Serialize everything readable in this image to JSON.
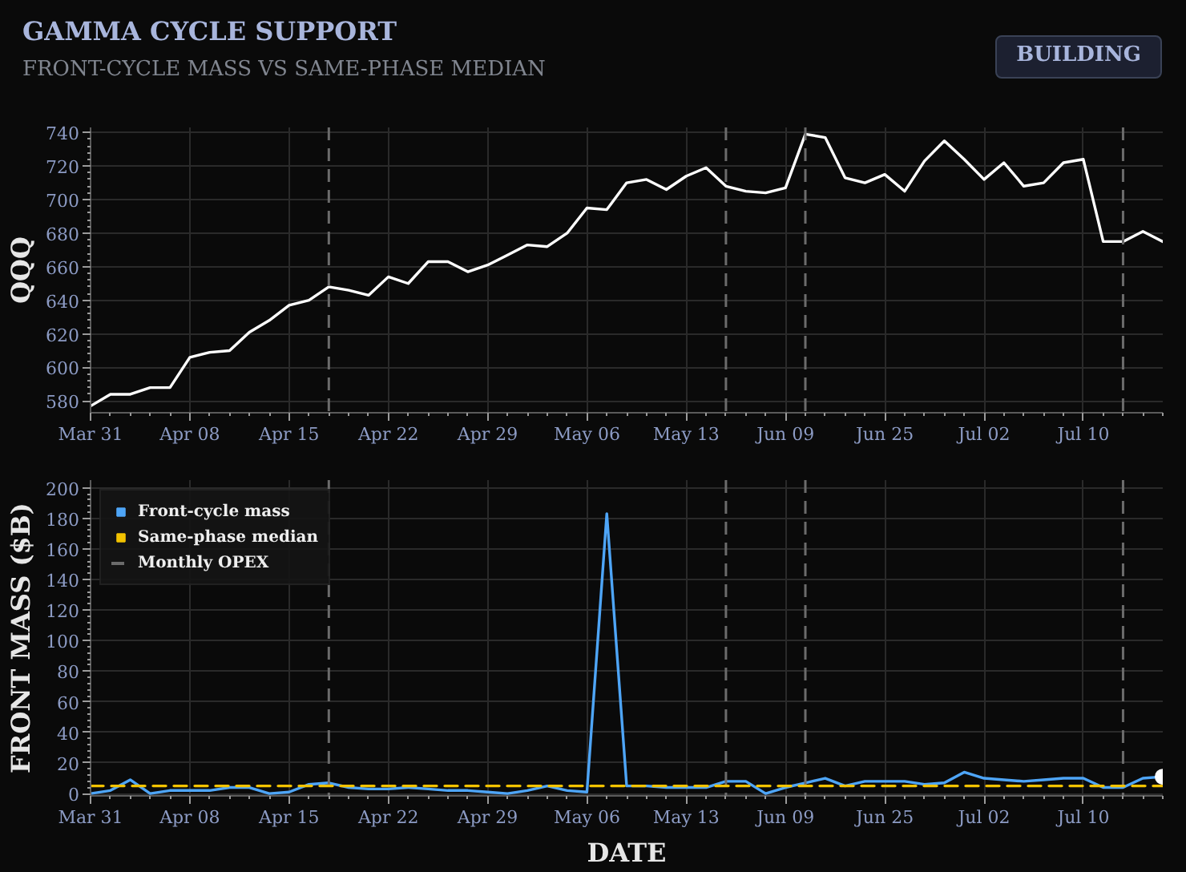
{
  "chart_data": [
    {
      "type": "line",
      "title": "GAMMA CYCLE SUPPORT",
      "subtitle": "FRONT-CYCLE MASS VS SAME-PHASE MEDIAN",
      "annotations": [
        "BUILDING"
      ],
      "ylabel": "QQQ",
      "categories": [
        "Mar 31",
        null,
        null,
        null,
        null,
        "Apr 08",
        null,
        null,
        null,
        null,
        "Apr 15",
        null,
        null,
        null,
        null,
        "Apr 22",
        null,
        null,
        null,
        null,
        "Apr 29",
        null,
        null,
        null,
        null,
        "May 06",
        null,
        null,
        null,
        null,
        "May 13",
        null,
        null,
        null,
        null,
        "Jun 09",
        null,
        null,
        null,
        null,
        "Jun 25",
        null,
        null,
        null,
        null,
        "Jul 02",
        null,
        null,
        null,
        null,
        "Jul 10",
        null,
        null,
        null,
        null
      ],
      "series": [
        {
          "color": "#ffffff",
          "values": [
            577,
            584,
            584,
            588,
            588,
            606,
            609,
            610,
            621,
            628,
            637,
            640,
            648,
            646,
            643,
            654,
            650,
            663,
            663,
            657,
            661,
            667,
            673,
            672,
            680,
            695,
            694,
            710,
            712,
            706,
            714,
            719,
            708,
            705,
            704,
            707,
            739,
            737,
            713,
            710,
            715,
            705,
            723,
            735,
            724,
            712,
            722,
            708,
            710,
            722,
            724,
            675,
            675,
            681,
            675
          ]
        }
      ],
      "ylim": [
        573,
        743
      ],
      "yticks": [
        580,
        600,
        620,
        640,
        660,
        680,
        700,
        720,
        740
      ],
      "grid": true
    },
    {
      "type": "line",
      "xlabel": "DATE",
      "ylabel": "FRONT MASS ($B)",
      "annotations": [
        "Monthly OPEX"
      ],
      "categories": [
        "Mar 31",
        null,
        null,
        null,
        null,
        "Apr 08",
        null,
        null,
        null,
        null,
        "Apr 15",
        null,
        null,
        null,
        null,
        "Apr 22",
        null,
        null,
        null,
        null,
        "Apr 29",
        null,
        null,
        null,
        null,
        "May 06",
        null,
        null,
        null,
        null,
        "May 13",
        null,
        null,
        null,
        null,
        "Jun 09",
        null,
        null,
        null,
        null,
        "Jun 25",
        null,
        null,
        null,
        null,
        "Jul 02",
        null,
        null,
        null,
        null,
        "Jul 10",
        null,
        null,
        null,
        null
      ],
      "series": [
        {
          "name": "Front-cycle mass",
          "color": "#4ea5f7",
          "values": [
            0,
            2,
            9,
            0,
            2,
            2,
            2,
            4,
            4,
            0,
            1,
            6,
            7,
            4,
            3,
            3,
            4,
            3,
            2,
            2,
            1,
            0,
            2,
            5,
            2,
            1,
            183,
            5,
            5,
            4,
            4,
            4,
            8,
            8,
            0,
            4,
            7,
            10,
            5,
            8,
            8,
            8,
            6,
            7,
            14,
            10,
            9,
            8,
            9,
            10,
            10,
            4,
            4,
            10,
            11
          ]
        },
        {
          "name": "Same-phase median",
          "color": "#f2c200",
          "line_style": "dashed",
          "values": [
            5,
            5,
            5,
            5,
            5,
            5,
            5,
            5,
            5,
            5,
            5,
            5,
            5,
            5,
            5,
            5,
            5,
            5,
            5,
            5,
            5,
            5,
            5,
            5,
            5,
            5,
            5,
            5,
            5,
            5,
            5,
            5,
            5,
            5,
            5,
            5,
            5,
            5,
            5,
            5,
            5,
            5,
            5,
            5,
            5,
            5,
            5,
            5,
            5,
            5,
            5,
            5,
            5,
            5,
            5
          ]
        },
        {
          "type": "scatter",
          "marker": "circle",
          "color": "#ffffff",
          "values": [
            null,
            null,
            null,
            null,
            null,
            null,
            null,
            null,
            null,
            null,
            null,
            null,
            null,
            null,
            null,
            null,
            null,
            null,
            null,
            null,
            null,
            null,
            null,
            null,
            null,
            null,
            null,
            null,
            null,
            null,
            null,
            null,
            null,
            null,
            null,
            null,
            null,
            null,
            null,
            null,
            null,
            null,
            null,
            null,
            null,
            null,
            null,
            null,
            null,
            null,
            null,
            null,
            null,
            null,
            11
          ]
        }
      ],
      "ylim": [
        -1.5,
        205
      ],
      "yticks": [
        0,
        20,
        40,
        60,
        80,
        100,
        120,
        140,
        160,
        180,
        200
      ],
      "grid": true,
      "legend": "top left"
    }
  ]
}
